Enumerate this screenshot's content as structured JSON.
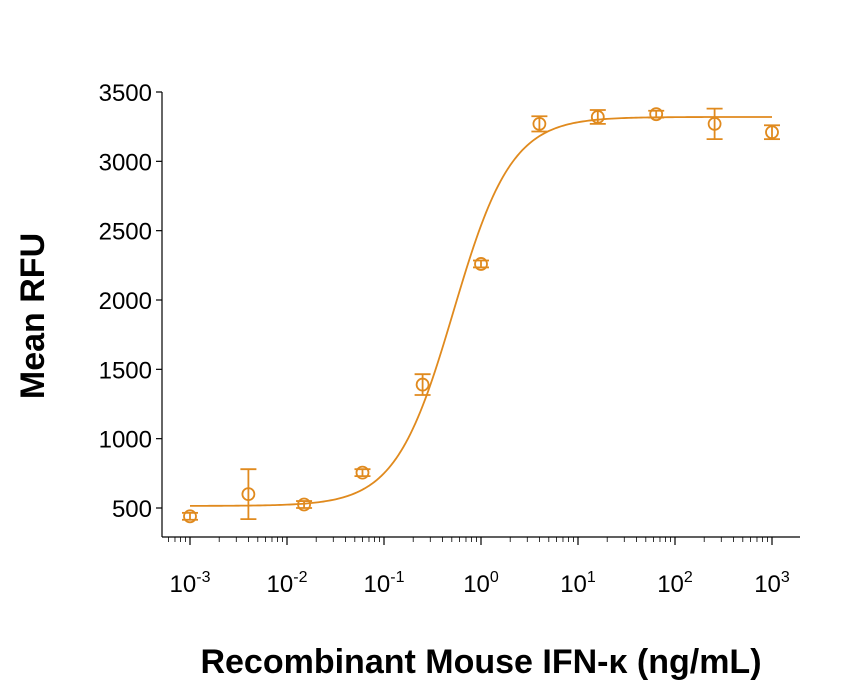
{
  "chart_data": {
    "type": "scatter",
    "title": "",
    "xlabel": "Recombinant Mouse IFN-κ (ng/mL)",
    "ylabel": "Mean RFU",
    "x_scale": "log",
    "xlim": [
      0.001,
      1000
    ],
    "ylim": [
      250,
      3500
    ],
    "y_ticks": [
      500,
      1000,
      1500,
      2000,
      2500,
      3000,
      3500
    ],
    "x_ticks": [
      {
        "value": 0.001,
        "base": "10",
        "exp": "-3"
      },
      {
        "value": 0.01,
        "base": "10",
        "exp": "-2"
      },
      {
        "value": 0.1,
        "base": "10",
        "exp": "-1"
      },
      {
        "value": 1,
        "base": "10",
        "exp": "0"
      },
      {
        "value": 10,
        "base": "10",
        "exp": "1"
      },
      {
        "value": 100,
        "base": "10",
        "exp": "2"
      },
      {
        "value": 1000,
        "base": "10",
        "exp": "3"
      }
    ],
    "grid": false,
    "legend": "none",
    "color": "#e08a1e",
    "points": [
      {
        "x": 0.001,
        "y": 440,
        "err": 25
      },
      {
        "x": 0.004,
        "y": 600,
        "err": 180
      },
      {
        "x": 0.015,
        "y": 525,
        "err": 25
      },
      {
        "x": 0.06,
        "y": 755,
        "err": 25
      },
      {
        "x": 0.25,
        "y": 1390,
        "err": 75
      },
      {
        "x": 1,
        "y": 2260,
        "err": 25
      },
      {
        "x": 4,
        "y": 3270,
        "err": 55
      },
      {
        "x": 16,
        "y": 3320,
        "err": 50
      },
      {
        "x": 64,
        "y": 3340,
        "err": 25
      },
      {
        "x": 256,
        "y": 3270,
        "err": 110
      },
      {
        "x": 1000,
        "y": 3210,
        "err": 50
      }
    ],
    "fit_curve": {
      "model": "4PL",
      "bottom": 515,
      "top": 3320,
      "ec50": 0.52,
      "hill": 1.45
    }
  }
}
